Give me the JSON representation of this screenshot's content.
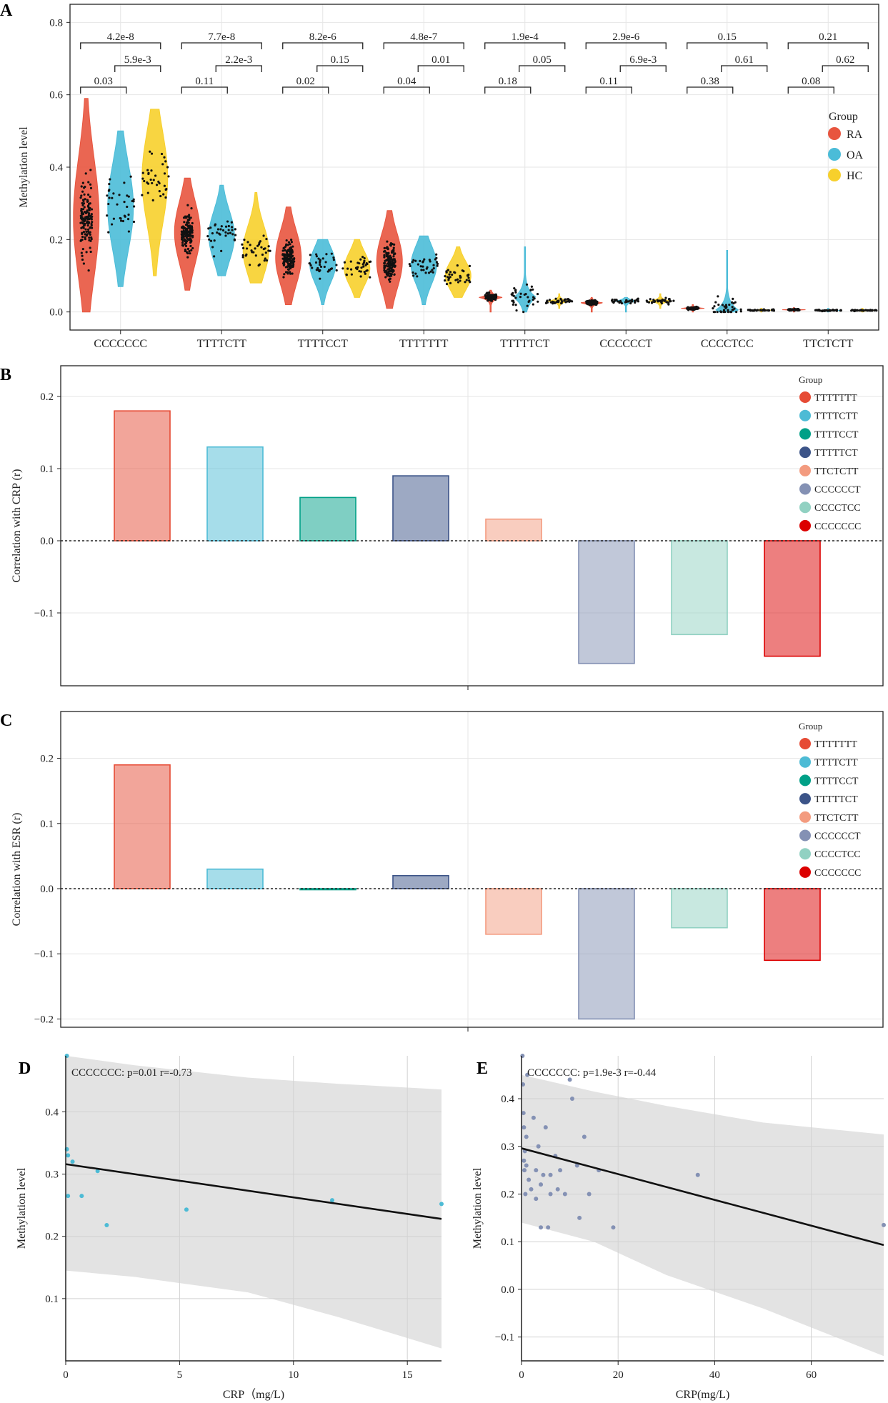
{
  "colors": {
    "RA": "#e8553f",
    "OA": "#4bbcd8",
    "HC": "#f7d02c",
    "TTTTTTT": "#e64b35",
    "TTTTCTT": "#4dbbd5",
    "TTTTCCT": "#00a087",
    "TTTTTCT": "#3c5488",
    "TTCTCTT": "#f39b7f",
    "CCCCCCT": "#8491b4",
    "CCCCTCC": "#91d1c2",
    "CCCCCCC": "#dc0000",
    "grid": "#e6e6e6",
    "band": "#e3e3e3",
    "line": "#111111"
  },
  "chart_data": [
    {
      "panel": "A",
      "type": "violin",
      "ylabel": "Methylation level",
      "ylim": [
        -0.05,
        0.85
      ],
      "yticks": [
        "0.0",
        "0.2",
        "0.4",
        "0.6",
        "0.8"
      ],
      "categories": [
        "CCCCCCC",
        "TTTTCTT",
        "TTTTCCT",
        "TTTTTTT",
        "TTTTTCT",
        "CCCCCCT",
        "CCCCTCC",
        "TTCTCTT"
      ],
      "legend_title": "Group",
      "groups": [
        "RA",
        "OA",
        "HC"
      ],
      "series": [
        {
          "name": "RA",
          "median": [
            0.26,
            0.22,
            0.15,
            0.14,
            0.04,
            0.025,
            0.01,
            0.006
          ],
          "min": [
            0.0,
            0.06,
            0.02,
            0.01,
            0.0,
            0.0,
            0.0,
            0.0
          ],
          "max": [
            0.59,
            0.37,
            0.29,
            0.28,
            0.06,
            0.04,
            0.02,
            0.012
          ]
        },
        {
          "name": "OA",
          "median": [
            0.29,
            0.21,
            0.13,
            0.13,
            0.04,
            0.03,
            0.005,
            0.004
          ],
          "min": [
            0.07,
            0.1,
            0.02,
            0.02,
            0.0,
            0.0,
            0.0,
            0.0
          ],
          "max": [
            0.5,
            0.35,
            0.2,
            0.21,
            0.18,
            0.04,
            0.17,
            0.01
          ]
        },
        {
          "name": "HC",
          "median": [
            0.37,
            0.17,
            0.12,
            0.1,
            0.03,
            0.03,
            0.005,
            0.004
          ],
          "min": [
            0.1,
            0.08,
            0.04,
            0.04,
            0.01,
            0.01,
            0.0,
            0.0
          ],
          "max": [
            0.56,
            0.33,
            0.2,
            0.18,
            0.05,
            0.05,
            0.01,
            0.01
          ]
        }
      ],
      "pvalues": {
        "RA_vs_HC": [
          "4.2e-8",
          "7.7e-8",
          "8.2e-6",
          "4.8e-7",
          "1.9e-4",
          "2.9e-6",
          "0.15",
          "0.21"
        ],
        "OA_vs_HC": [
          "5.9e-3",
          "2.2e-3",
          "0.15",
          "0.01",
          "0.05",
          "6.9e-3",
          "0.61",
          "0.62"
        ],
        "RA_vs_OA": [
          "0.03",
          "0.11",
          "0.02",
          "0.04",
          "0.18",
          "0.11",
          "0.38",
          "0.08"
        ]
      }
    },
    {
      "panel": "B",
      "type": "bar",
      "ylabel": "Correlation with CRP (r)",
      "ylim": [
        -0.2,
        0.24
      ],
      "yticks": [
        "0.2",
        "0.1",
        "0.0",
        "−0.1"
      ],
      "categories": [
        "TTTTTTT",
        "TTTTCTT",
        "TTTTCCT",
        "TTTTTCT",
        "TTCTCTT",
        "CCCCCCT",
        "CCCCTCC",
        "CCCCCCC"
      ],
      "values": [
        0.18,
        0.13,
        0.06,
        0.09,
        0.03,
        -0.17,
        -0.13,
        -0.16
      ],
      "legend_title": "Group"
    },
    {
      "panel": "C",
      "type": "bar",
      "ylabel": "Correlation with ESR (r)",
      "ylim": [
        -0.22,
        0.25
      ],
      "yticks": [
        "0.2",
        "0.1",
        "0.0",
        "−0.1",
        "−0.2"
      ],
      "categories": [
        "TTTTTTT",
        "TTTTCTT",
        "TTTTCCT",
        "TTTTTCT",
        "TTCTCTT",
        "CCCCCCT",
        "CCCCTCC",
        "CCCCCCC"
      ],
      "values": [
        0.19,
        0.03,
        0.0,
        0.02,
        -0.07,
        -0.2,
        -0.06,
        -0.11
      ],
      "legend_title": "Group"
    },
    {
      "panel": "D",
      "type": "scatter",
      "annotation": "CCCCCCC: p=0.01 r=-0.73",
      "xlabel": "CRP（mg/L)",
      "ylabel": "Methylation level",
      "xlim": [
        0,
        16.5
      ],
      "ylim": [
        0.0,
        0.49
      ],
      "xticks": [
        "0",
        "5",
        "10",
        "15"
      ],
      "yticks": [
        "0.1",
        "0.2",
        "0.3",
        "0.4"
      ],
      "point_color": "#4dbbd5",
      "x": [
        0.05,
        0.05,
        0.1,
        0.1,
        0.3,
        0.7,
        1.4,
        1.8,
        5.3,
        11.7,
        16.5
      ],
      "y": [
        0.49,
        0.34,
        0.33,
        0.265,
        0.32,
        0.265,
        0.305,
        0.218,
        0.243,
        0.258,
        0.252
      ],
      "fit": [
        [
          0,
          0.316
        ],
        [
          16.5,
          0.228
        ]
      ],
      "band_upper": [
        [
          0,
          0.49
        ],
        [
          3,
          0.475
        ],
        [
          8,
          0.455
        ],
        [
          12,
          0.445
        ],
        [
          16.5,
          0.436
        ]
      ],
      "band_lower": [
        [
          0,
          0.145
        ],
        [
          3,
          0.135
        ],
        [
          8,
          0.11
        ],
        [
          12,
          0.07
        ],
        [
          16.5,
          0.02
        ]
      ]
    },
    {
      "panel": "E",
      "type": "scatter",
      "annotation": "CCCCCCC: p=1.9e-3 r=-0.44",
      "xlabel": "CRP(mg/L)",
      "ylabel": "Methylation level",
      "xlim": [
        0,
        75
      ],
      "ylim": [
        -0.15,
        0.49
      ],
      "xticks": [
        "0",
        "20",
        "40",
        "60"
      ],
      "yticks": [
        "−0.1",
        "0.0",
        "0.1",
        "0.2",
        "0.3",
        "0.4"
      ],
      "point_color": "#8491b4",
      "x": [
        0.2,
        0.3,
        0.4,
        0.5,
        0.5,
        0.6,
        0.7,
        0.8,
        1.0,
        1.0,
        1.2,
        1.5,
        2.0,
        2.5,
        3.0,
        3.0,
        3.5,
        4.0,
        4.0,
        4.5,
        5.0,
        5.5,
        6.0,
        6.0,
        7.0,
        7.5,
        8.0,
        9.0,
        10.0,
        10.5,
        11.5,
        12.0,
        13.0,
        14.0,
        16.0,
        19.0,
        36.5,
        75.0
      ],
      "y": [
        0.49,
        0.43,
        0.37,
        0.34,
        0.27,
        0.25,
        0.29,
        0.2,
        0.32,
        0.26,
        0.45,
        0.23,
        0.21,
        0.36,
        0.25,
        0.19,
        0.3,
        0.22,
        0.13,
        0.24,
        0.34,
        0.13,
        0.2,
        0.24,
        0.28,
        0.21,
        0.25,
        0.2,
        0.44,
        0.4,
        0.26,
        0.15,
        0.32,
        0.2,
        0.25,
        0.13,
        0.24,
        0.135
      ],
      "fit": [
        [
          0,
          0.296
        ],
        [
          75,
          0.093
        ]
      ],
      "band_upper": [
        [
          0,
          0.45
        ],
        [
          15,
          0.415
        ],
        [
          30,
          0.385
        ],
        [
          50,
          0.35
        ],
        [
          75,
          0.325
        ]
      ],
      "band_lower": [
        [
          0,
          0.14
        ],
        [
          15,
          0.1
        ],
        [
          30,
          0.03
        ],
        [
          50,
          -0.04
        ],
        [
          75,
          -0.14
        ]
      ]
    }
  ]
}
